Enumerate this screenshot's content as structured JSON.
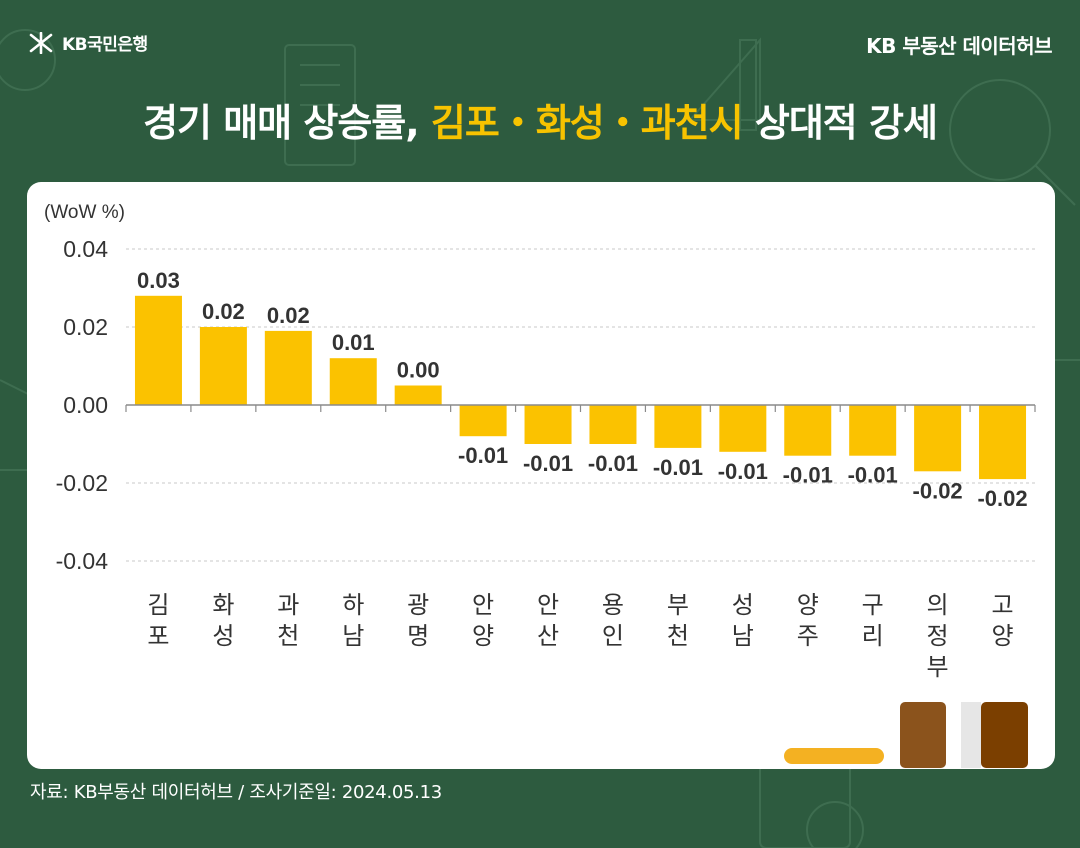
{
  "header": {
    "logo_text": "KB국민은행",
    "brand_right": "KB 부동산  데이터허브"
  },
  "headline": {
    "part1": "경기 매매 상승률, ",
    "accent": "김포・화성・과천시",
    "part2": " 상대적 강세"
  },
  "footer": {
    "source": "자료: KB부동산 데이터허브 / 조사기준일: 2024.05.13"
  },
  "colors": {
    "background": "#2d5b3f",
    "bar": "#fbc200",
    "accent": "#f7c300",
    "deco_brown_1": "#8b531c",
    "deco_brown_2": "#7b3f00",
    "deco_yellow": "#f4b122"
  },
  "chart_data": {
    "type": "bar",
    "unit_label": "(WoW %)",
    "categories": [
      "김포",
      "화성",
      "과천",
      "하남",
      "광명",
      "안양",
      "안산",
      "용인",
      "부천",
      "성남",
      "양주",
      "구리",
      "의정부",
      "고양"
    ],
    "values": [
      0.028,
      0.02,
      0.019,
      0.012,
      0.005,
      -0.008,
      -0.01,
      -0.01,
      -0.011,
      -0.012,
      -0.013,
      -0.013,
      -0.017,
      -0.019
    ],
    "data_labels": [
      "0.03",
      "0.02",
      "0.02",
      "0.01",
      "0.00",
      "-0.01",
      "-0.01",
      "-0.01",
      "-0.01",
      "-0.01",
      "-0.01",
      "-0.01",
      "-0.02",
      "-0.02"
    ],
    "yticks": [
      "0.04",
      "0.02",
      "0.00",
      "-0.02",
      "-0.04"
    ],
    "ytick_values": [
      0.04,
      0.02,
      0.0,
      -0.02,
      -0.04
    ],
    "ylim": [
      -0.04,
      0.04
    ],
    "grid": true,
    "title": "",
    "xlabel": "",
    "ylabel": ""
  }
}
